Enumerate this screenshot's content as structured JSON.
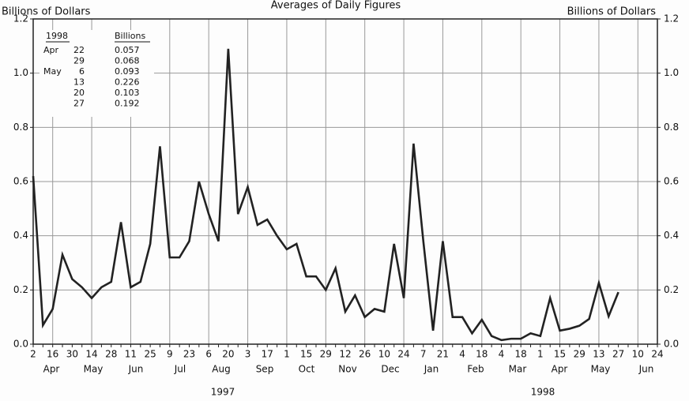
{
  "chart_data": {
    "type": "line",
    "title": "Averages of Daily Figures",
    "y_label_left": "Billions of Dollars",
    "y_label_right": "Billions of Dollars",
    "categories": [
      "2",
      null,
      "16",
      null,
      "30",
      null,
      "14",
      null,
      "28",
      null,
      "11",
      null,
      "25",
      null,
      "9",
      null,
      "23",
      null,
      "6",
      null,
      "20",
      null,
      "3",
      null,
      "17",
      null,
      "1",
      null,
      "15",
      null,
      "29",
      null,
      "12",
      null,
      "26",
      null,
      "10",
      null,
      "24",
      null,
      "7",
      null,
      "21",
      null,
      "4",
      null,
      "18",
      null,
      "4",
      null,
      "18",
      null,
      "1",
      null,
      "15",
      null,
      "29",
      null,
      "13",
      null,
      "27",
      null,
      "10",
      null,
      "24"
    ],
    "month_labels": [
      "Apr",
      "May",
      "Jun",
      "Jul",
      "Aug",
      "Sep",
      "Oct",
      "Nov",
      "Dec",
      "Jan",
      "Feb",
      "Mar",
      "Apr",
      "May",
      "Jun"
    ],
    "year_labels": [
      "1997",
      "1998"
    ],
    "series": [
      {
        "name": "Averages of Daily Figures",
        "color": "#222222",
        "values": [
          0.62,
          0.07,
          0.13,
          0.33,
          0.24,
          0.21,
          0.17,
          0.21,
          0.23,
          0.45,
          0.21,
          0.23,
          0.37,
          0.73,
          0.32,
          0.32,
          0.38,
          0.6,
          0.48,
          0.38,
          1.09,
          0.48,
          0.58,
          0.44,
          0.46,
          0.4,
          0.35,
          0.37,
          0.25,
          0.25,
          0.2,
          0.28,
          0.12,
          0.18,
          0.1,
          0.13,
          0.12,
          0.37,
          0.17,
          0.74,
          0.38,
          0.05,
          0.38,
          0.1,
          0.1,
          0.04,
          0.09,
          0.03,
          0.015,
          0.02,
          0.02,
          0.04,
          0.03,
          0.17,
          0.05,
          0.057,
          0.068,
          0.093,
          0.226,
          0.103,
          0.192,
          null,
          null,
          null,
          null
        ]
      }
    ],
    "ylim": [
      0,
      1.2
    ],
    "yticks": [
      {
        "value": 0,
        "label": "0.0"
      },
      0.2,
      0.4,
      0.6,
      0.8,
      {
        "value": 1,
        "label": "1.0"
      },
      1.2
    ],
    "grid": true,
    "inset_table": {
      "header": [
        "1998",
        "Billions"
      ],
      "rows": [
        [
          "Apr",
          "22",
          "0.057"
        ],
        [
          null,
          "29",
          "0.068"
        ],
        [
          "May",
          "6",
          "0.093"
        ],
        [
          null,
          "13",
          "0.226"
        ],
        [
          null,
          "20",
          "0.103"
        ],
        [
          null,
          "27",
          "0.192"
        ]
      ]
    }
  }
}
